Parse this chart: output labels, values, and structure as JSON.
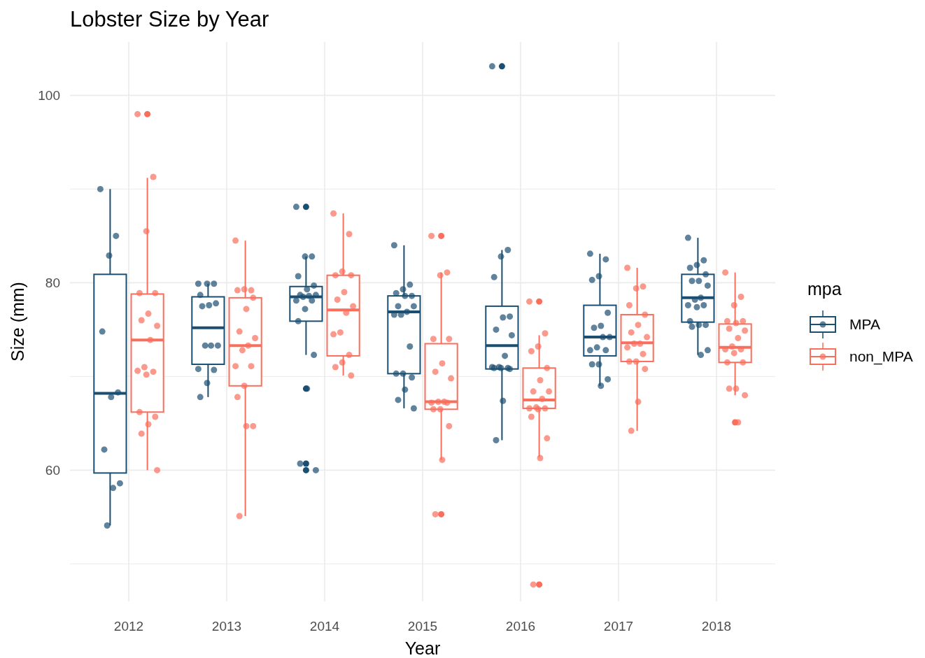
{
  "chart_data": {
    "type": "box",
    "title": "Lobster Size by Year",
    "xlabel": "Year",
    "ylabel": "Size (mm)",
    "legend_title": "mpa",
    "xlim": [
      2011.4,
      2018.6
    ],
    "xticks": [
      2012,
      2013,
      2014,
      2015,
      2016,
      2017,
      2018
    ],
    "ylim": [
      46,
      105.7
    ],
    "yticks": [
      {
        "value": 50,
        "label": null
      },
      60,
      {
        "value": 70,
        "label": null
      },
      80,
      {
        "value": 90,
        "label": null
      },
      100
    ],
    "grid": true,
    "legend": "right",
    "series": [
      {
        "name": "MPA",
        "color": "#1b4f72",
        "x": [
          2012,
          2013,
          2014,
          2015,
          2016,
          2017,
          2018
        ],
        "boxes": [
          {
            "low": 54.1,
            "q1": 59.7,
            "median": 68.2,
            "q3": 80.9,
            "high": 90.0
          },
          {
            "low": 67.8,
            "q1": 71.3,
            "median": 75.2,
            "q3": 78.5,
            "high": 79.9
          },
          {
            "low": 72.3,
            "q1": 75.9,
            "median": 78.5,
            "q3": 79.6,
            "high": 82.8,
            "outliers": [
              88.1,
              68.7,
              60.7,
              60.0
            ]
          },
          {
            "low": 66.6,
            "q1": 70.3,
            "median": 76.9,
            "q3": 78.6,
            "high": 84.0
          },
          {
            "low": 63.2,
            "q1": 70.8,
            "median": 73.3,
            "q3": 77.5,
            "high": 83.5,
            "outliers": [
              103.1
            ]
          },
          {
            "low": 69.0,
            "q1": 72.2,
            "median": 74.2,
            "q3": 77.6,
            "high": 83.1
          },
          {
            "low": 72.3,
            "q1": 75.8,
            "median": 78.4,
            "q3": 80.9,
            "high": 84.8
          }
        ]
      },
      {
        "name": "non_MPA",
        "color": "#fa6e5c",
        "x": [
          2012,
          2013,
          2014,
          2015,
          2016,
          2017,
          2018
        ],
        "boxes": [
          {
            "low": 60.0,
            "q1": 66.2,
            "median": 73.9,
            "q3": 78.8,
            "high": 91.2,
            "outliers": [
              98.0
            ]
          },
          {
            "low": 55.1,
            "q1": 69.0,
            "median": 73.3,
            "q3": 78.4,
            "high": 84.5
          },
          {
            "low": 70.1,
            "q1": 72.2,
            "median": 77.1,
            "q3": 80.8,
            "high": 87.4
          },
          {
            "low": 61.1,
            "q1": 66.5,
            "median": 67.3,
            "q3": 73.5,
            "high": 81.1,
            "outliers": [
              85.0,
              55.3
            ]
          },
          {
            "low": 61.4,
            "q1": 66.6,
            "median": 67.5,
            "q3": 70.9,
            "high": 74.4,
            "outliers": [
              78.0,
              47.8
            ]
          },
          {
            "low": 64.2,
            "q1": 71.6,
            "median": 73.6,
            "q3": 76.6,
            "high": 81.6
          },
          {
            "low": 68.0,
            "q1": 71.5,
            "median": 73.1,
            "q3": 75.6,
            "high": 81.1,
            "outliers": [
              65.1
            ]
          }
        ]
      },
      {
        "type": "scatter",
        "color": "#1b4f72",
        "marker": "circle",
        "x": [
          2011.71,
          2011.87,
          2011.8,
          2011.73,
          2011.89,
          2011.82,
          2011.75,
          2011.91,
          2011.84,
          2011.78,
          2012.71,
          2012.87,
          2012.8,
          2012.73,
          2012.89,
          2012.82,
          2012.75,
          2012.91,
          2012.84,
          2012.78,
          2012.71,
          2012.87,
          2012.8,
          2012.73,
          2013.71,
          2013.87,
          2013.8,
          2013.73,
          2013.89,
          2013.82,
          2013.75,
          2013.91,
          2013.84,
          2013.78,
          2013.71,
          2013.87,
          2013.8,
          2013.73,
          2013.89,
          2013.82,
          2013.75,
          2013.91,
          2014.71,
          2014.87,
          2014.8,
          2014.73,
          2014.89,
          2014.82,
          2014.75,
          2014.91,
          2014.84,
          2014.78,
          2014.71,
          2014.87,
          2014.8,
          2014.73,
          2014.89,
          2014.82,
          2014.75,
          2014.91,
          2015.71,
          2015.87,
          2015.8,
          2015.73,
          2015.89,
          2015.82,
          2015.75,
          2015.91,
          2015.84,
          2015.78,
          2015.71,
          2015.87,
          2015.8,
          2015.73,
          2015.89,
          2015.82,
          2015.75,
          2016.71,
          2016.87,
          2016.8,
          2016.73,
          2016.89,
          2016.82,
          2016.75,
          2016.91,
          2016.84,
          2016.78,
          2016.71,
          2016.87,
          2016.8,
          2016.73,
          2016.89,
          2016.82,
          2017.71,
          2017.87,
          2017.8,
          2017.73,
          2017.89,
          2017.82,
          2017.75,
          2017.91,
          2017.84,
          2017.78,
          2017.71,
          2017.87,
          2017.8,
          2017.73,
          2017.89,
          2017.82,
          2017.75,
          2017.91,
          2017.84
        ],
        "values": [
          90,
          85,
          82.9,
          74.8,
          68.3,
          67.8,
          62.2,
          58.6,
          58.1,
          54.1,
          79.9,
          79.9,
          79.9,
          78.7,
          77.8,
          77.6,
          77.5,
          73.3,
          73.3,
          73.3,
          70.8,
          70.7,
          69.3,
          67.8,
          88.1,
          82.8,
          82.8,
          80.7,
          79.7,
          79.3,
          78.7,
          78.7,
          78.6,
          78.5,
          78.1,
          78.1,
          77.2,
          75.9,
          72.3,
          68.7,
          60.7,
          60,
          84,
          79.8,
          79.3,
          78.9,
          78.6,
          78.6,
          77.5,
          77.5,
          76.9,
          76.6,
          76.6,
          73.2,
          70.3,
          70.3,
          69.9,
          68.6,
          67.5,
          66.6,
          103.1,
          83.5,
          82.8,
          80.6,
          76.4,
          76.3,
          75,
          74.4,
          72.2,
          71,
          71,
          70.9,
          70.9,
          70.9,
          70.8,
          67.4,
          63.2,
          83.1,
          82.5,
          80.7,
          80.3,
          76.8,
          75.4,
          75.2,
          74.2,
          74.2,
          73.1,
          72.8,
          72.8,
          71.3,
          71.3,
          69.7,
          69,
          84.8,
          82.4,
          81.9,
          81.6,
          80.9,
          80.2,
          80.2,
          79.7,
          78.4,
          78.2,
          77.6,
          77.6,
          77.4,
          75.9,
          75.5,
          75.5,
          75.3,
          72.8,
          72.3
        ]
      },
      {
        "type": "scatter",
        "color": "#fa6e5c",
        "marker": "circle",
        "x": [
          2012.09,
          2012.25,
          2012.18,
          2012.11,
          2012.27,
          2012.2,
          2012.13,
          2012.29,
          2012.22,
          2012.16,
          2012.09,
          2012.25,
          2012.18,
          2012.11,
          2012.27,
          2012.2,
          2012.13,
          2012.29,
          2013.09,
          2013.25,
          2013.18,
          2013.11,
          2013.27,
          2013.2,
          2013.13,
          2013.29,
          2013.22,
          2013.16,
          2013.09,
          2013.25,
          2013.18,
          2013.11,
          2013.27,
          2013.2,
          2013.13,
          2014.09,
          2014.25,
          2014.18,
          2014.11,
          2014.27,
          2014.2,
          2014.13,
          2014.29,
          2014.22,
          2014.16,
          2014.09,
          2014.25,
          2014.18,
          2014.11,
          2014.27,
          2015.09,
          2015.25,
          2015.18,
          2015.11,
          2015.27,
          2015.2,
          2015.13,
          2015.29,
          2015.22,
          2015.16,
          2015.09,
          2015.25,
          2015.18,
          2015.11,
          2015.27,
          2015.2,
          2015.13,
          2016.09,
          2016.25,
          2016.18,
          2016.11,
          2016.27,
          2016.2,
          2016.13,
          2016.29,
          2016.22,
          2016.16,
          2016.09,
          2016.25,
          2016.18,
          2016.11,
          2016.27,
          2016.2,
          2016.13,
          2017.09,
          2017.25,
          2017.18,
          2017.11,
          2017.27,
          2017.2,
          2017.13,
          2017.29,
          2017.22,
          2017.16,
          2017.09,
          2017.25,
          2017.18,
          2017.11,
          2017.27,
          2017.2,
          2017.13,
          2018.09,
          2018.25,
          2018.18,
          2018.11,
          2018.27,
          2018.2,
          2018.13,
          2018.29,
          2018.22,
          2018.16,
          2018.09,
          2018.25,
          2018.18,
          2018.11,
          2018.27,
          2018.2,
          2018.13,
          2018.29,
          2018.22
        ],
        "values": [
          98,
          91.3,
          85.5,
          78.9,
          78.9,
          76.7,
          76,
          75.4,
          73.9,
          71,
          70.6,
          70.5,
          70.2,
          66.2,
          65.7,
          64.9,
          63.9,
          60,
          84.5,
          79.2,
          79.3,
          79.2,
          78.4,
          77.2,
          74.8,
          74.1,
          73.3,
          72.8,
          71.1,
          71.1,
          69,
          67.8,
          64.7,
          64.7,
          55.1,
          87.4,
          85.2,
          81.2,
          80.8,
          80.8,
          79,
          78.2,
          77.5,
          76.8,
          74.7,
          74.5,
          72.3,
          71.5,
          71,
          70.1,
          85,
          81.1,
          80.8,
          74,
          74,
          71.4,
          70.5,
          69.8,
          67.3,
          67.3,
          67.2,
          67.2,
          66.5,
          66.5,
          64.7,
          61.1,
          55.3,
          78,
          74.6,
          73.2,
          72.7,
          70.9,
          69.6,
          68.4,
          68.4,
          67.6,
          66.7,
          66.6,
          66.6,
          66.5,
          65.7,
          63.4,
          61.3,
          47.8,
          81.6,
          79.6,
          79.4,
          77.6,
          76.6,
          75.5,
          74.7,
          74.2,
          73.5,
          73.5,
          73.1,
          72.4,
          71.6,
          71.6,
          70.8,
          67.3,
          64.2,
          81.1,
          78.5,
          77.6,
          75.9,
          75.9,
          75.7,
          75.1,
          74.9,
          74.1,
          73.2,
          72.9,
          72.9,
          72.5,
          71.5,
          71.5,
          68.7,
          68.7,
          68,
          65.1
        ]
      }
    ]
  }
}
